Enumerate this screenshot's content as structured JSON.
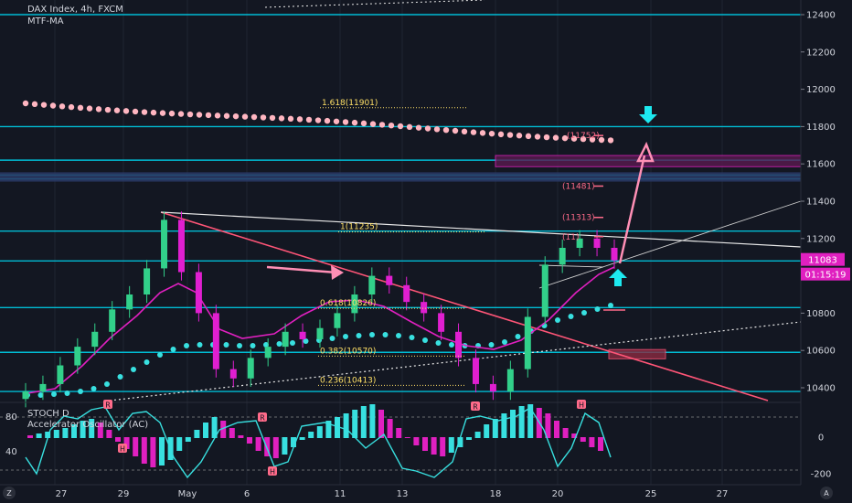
{
  "header": {
    "symbol_line": "DAX Index, 4h, FXCM",
    "indicator_line": "MTF-MA",
    "osc_line1": "STOCH D",
    "osc_line2": "Accelerator Oscillator (AC)"
  },
  "price_axis": {
    "ticks": [
      "12400",
      "12200",
      "12000",
      "11800",
      "11600",
      "11400",
      "11200",
      "10800",
      "10600",
      "10400"
    ],
    "current_price": "11083",
    "countdown": "01:15:19"
  },
  "osc_axis": {
    "ticks": [
      "80",
      "40"
    ],
    "right_ticks": [
      "0",
      "-200"
    ]
  },
  "time_axis": {
    "ticks": [
      "27",
      "29",
      "May",
      "6",
      "11",
      "13",
      "18",
      "20",
      "25",
      "27"
    ]
  },
  "corner_left": "Z",
  "corner_right": "A",
  "fib_labels": [
    {
      "text": "1.618(11901)"
    },
    {
      "text": "1(11235)"
    },
    {
      "text": "0.618(10826)"
    },
    {
      "text": "0.382(10570)"
    },
    {
      "text": "0.236(10413)"
    }
  ],
  "target_labels": [
    {
      "text": "(11752)"
    },
    {
      "text": "(11481)"
    },
    {
      "text": "(11313)"
    },
    {
      "text": "(11)"
    }
  ],
  "markers": [
    "R",
    "H",
    "R",
    "H",
    "R",
    "H"
  ],
  "colors": {
    "background": "#131722",
    "level_line": "#00bcd4",
    "trend_red": "#ff5577",
    "ma_cyan": "#38e0e0",
    "ma_pink": "#ffb6c1",
    "ma_magenta": "#e020c0",
    "candle_up": "#32d08a",
    "candle_down": "#e01fd0",
    "arrow_pink": "#ff8fb5",
    "arrow_cyan": "#1de9f0",
    "fib_yellow": "#ffe066"
  },
  "chart_data": {
    "type": "candlestick",
    "price_axis_ticks": [
      12400,
      12200,
      12000,
      11800,
      11600,
      11400,
      11200,
      10800,
      10600,
      10400
    ],
    "current_price": 11083,
    "horizontal_levels": [
      12400,
      11800,
      11620,
      11540,
      11520,
      11240,
      11080,
      10830,
      10590,
      10380
    ],
    "fibonacci": [
      {
        "ratio": 1.618,
        "value": 11901
      },
      {
        "ratio": 1,
        "value": 11235
      },
      {
        "ratio": 0.618,
        "value": 10826
      },
      {
        "ratio": 0.382,
        "value": 10570
      },
      {
        "ratio": 0.236,
        "value": 10413
      }
    ],
    "targets": [
      11752,
      11481,
      11313
    ],
    "close_series_approx": [
      10380,
      10420,
      10520,
      10620,
      10700,
      10820,
      10900,
      11040,
      11300,
      11020,
      10800,
      10500,
      10450,
      10560,
      10620,
      10700,
      10660,
      10720,
      10800,
      10900,
      11000,
      10950,
      10860,
      10800,
      10700,
      10560,
      10420,
      10380,
      10500,
      10780,
      11060,
      11150,
      11200,
      11150,
      11083
    ],
    "oscillator_axis_ticks": [
      80,
      40
    ],
    "oscillator_right_ticks": [
      0,
      -200
    ]
  }
}
